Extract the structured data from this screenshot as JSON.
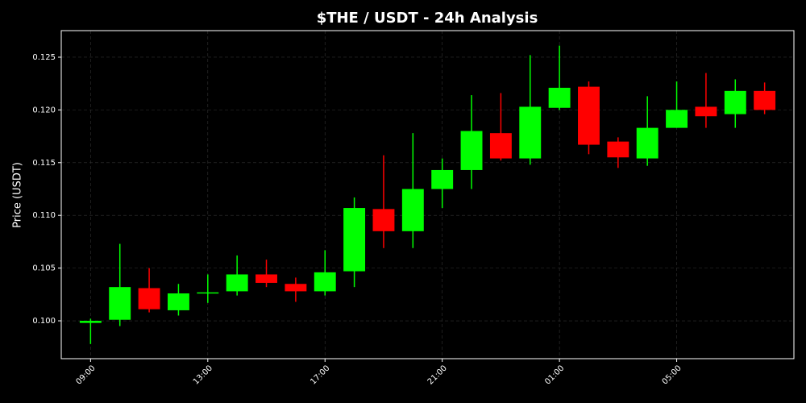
{
  "chart_data": {
    "type": "candlestick",
    "title": "$THE / USDT - 24h Analysis",
    "y_label": "Price (USDT)",
    "categories": [
      "09:00",
      null,
      null,
      null,
      "13:00",
      null,
      null,
      null,
      "17:00",
      null,
      null,
      null,
      "21:00",
      null,
      null,
      null,
      "01:00",
      null,
      null,
      null,
      "05:00",
      null,
      null,
      null
    ],
    "open": [
      0.0998,
      0.1001,
      0.1031,
      0.101,
      0.1026,
      0.1028,
      0.1044,
      0.1035,
      0.1028,
      0.1047,
      0.1106,
      0.1085,
      0.1125,
      0.1143,
      0.1178,
      0.1154,
      0.1202,
      0.1222,
      0.117,
      0.1154,
      0.1183,
      0.1203,
      0.1196,
      0.1218
    ],
    "high": [
      0.1002,
      0.1073,
      0.105,
      0.1035,
      0.1044,
      0.1062,
      0.1058,
      0.1041,
      0.1067,
      0.1117,
      0.1157,
      0.1178,
      0.1154,
      0.1214,
      0.1216,
      0.1252,
      0.1261,
      0.1227,
      0.1174,
      0.1213,
      0.1227,
      0.1235,
      0.1229,
      0.1226
    ],
    "low": [
      0.0978,
      0.0995,
      0.1008,
      0.1005,
      0.1017,
      0.1024,
      0.1032,
      0.1018,
      0.1024,
      0.1032,
      0.1069,
      0.1069,
      0.1107,
      0.1125,
      0.1152,
      0.1148,
      0.12,
      0.1158,
      0.1145,
      0.1147,
      0.1183,
      0.1183,
      0.1183,
      0.1196
    ],
    "close": [
      0.1,
      0.1032,
      0.1011,
      0.1026,
      0.1027,
      0.1044,
      0.1036,
      0.1028,
      0.1046,
      0.1107,
      0.1085,
      0.1125,
      0.1143,
      0.118,
      0.1154,
      0.1203,
      0.1221,
      0.1167,
      0.1155,
      0.1183,
      0.12,
      0.1194,
      0.1218,
      0.12
    ],
    "up_color": "#00ff00",
    "down_color": "#ff0000",
    "ylim": [
      0.09641,
      0.12752
    ],
    "yticks": [
      {
        "value": 0.1,
        "label": "0.100"
      },
      {
        "value": 0.105,
        "label": "0.105"
      },
      {
        "value": 0.11,
        "label": "0.110"
      },
      {
        "value": 0.115,
        "label": "0.115"
      },
      {
        "value": 0.12,
        "label": "0.120"
      },
      {
        "value": 0.125,
        "label": "0.125"
      }
    ],
    "grid": true
  }
}
